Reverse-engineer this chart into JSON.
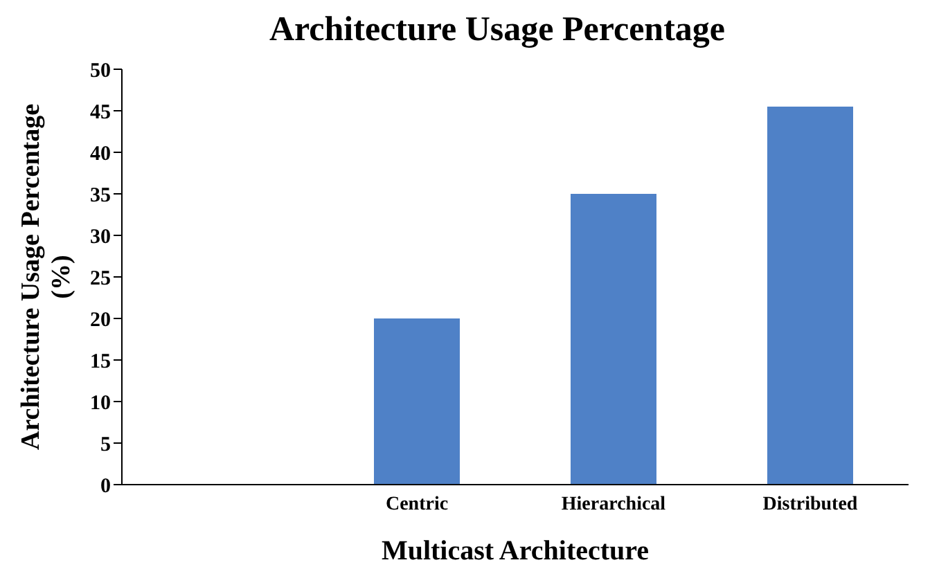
{
  "chart_data": {
    "type": "bar",
    "title": "Architecture Usage Percentage",
    "xlabel": "Multicast Architecture",
    "ylabel": "Architecture Usage Percentage (%)",
    "categories": [
      null,
      "Centric",
      "Hierarchical",
      "Distributed"
    ],
    "values": [
      null,
      20,
      35,
      45.5
    ],
    "color": "#4f81c7",
    "ylim": [
      0,
      50
    ],
    "yticks": [
      0,
      5,
      10,
      15,
      20,
      25,
      30,
      35,
      40,
      45,
      50
    ]
  }
}
